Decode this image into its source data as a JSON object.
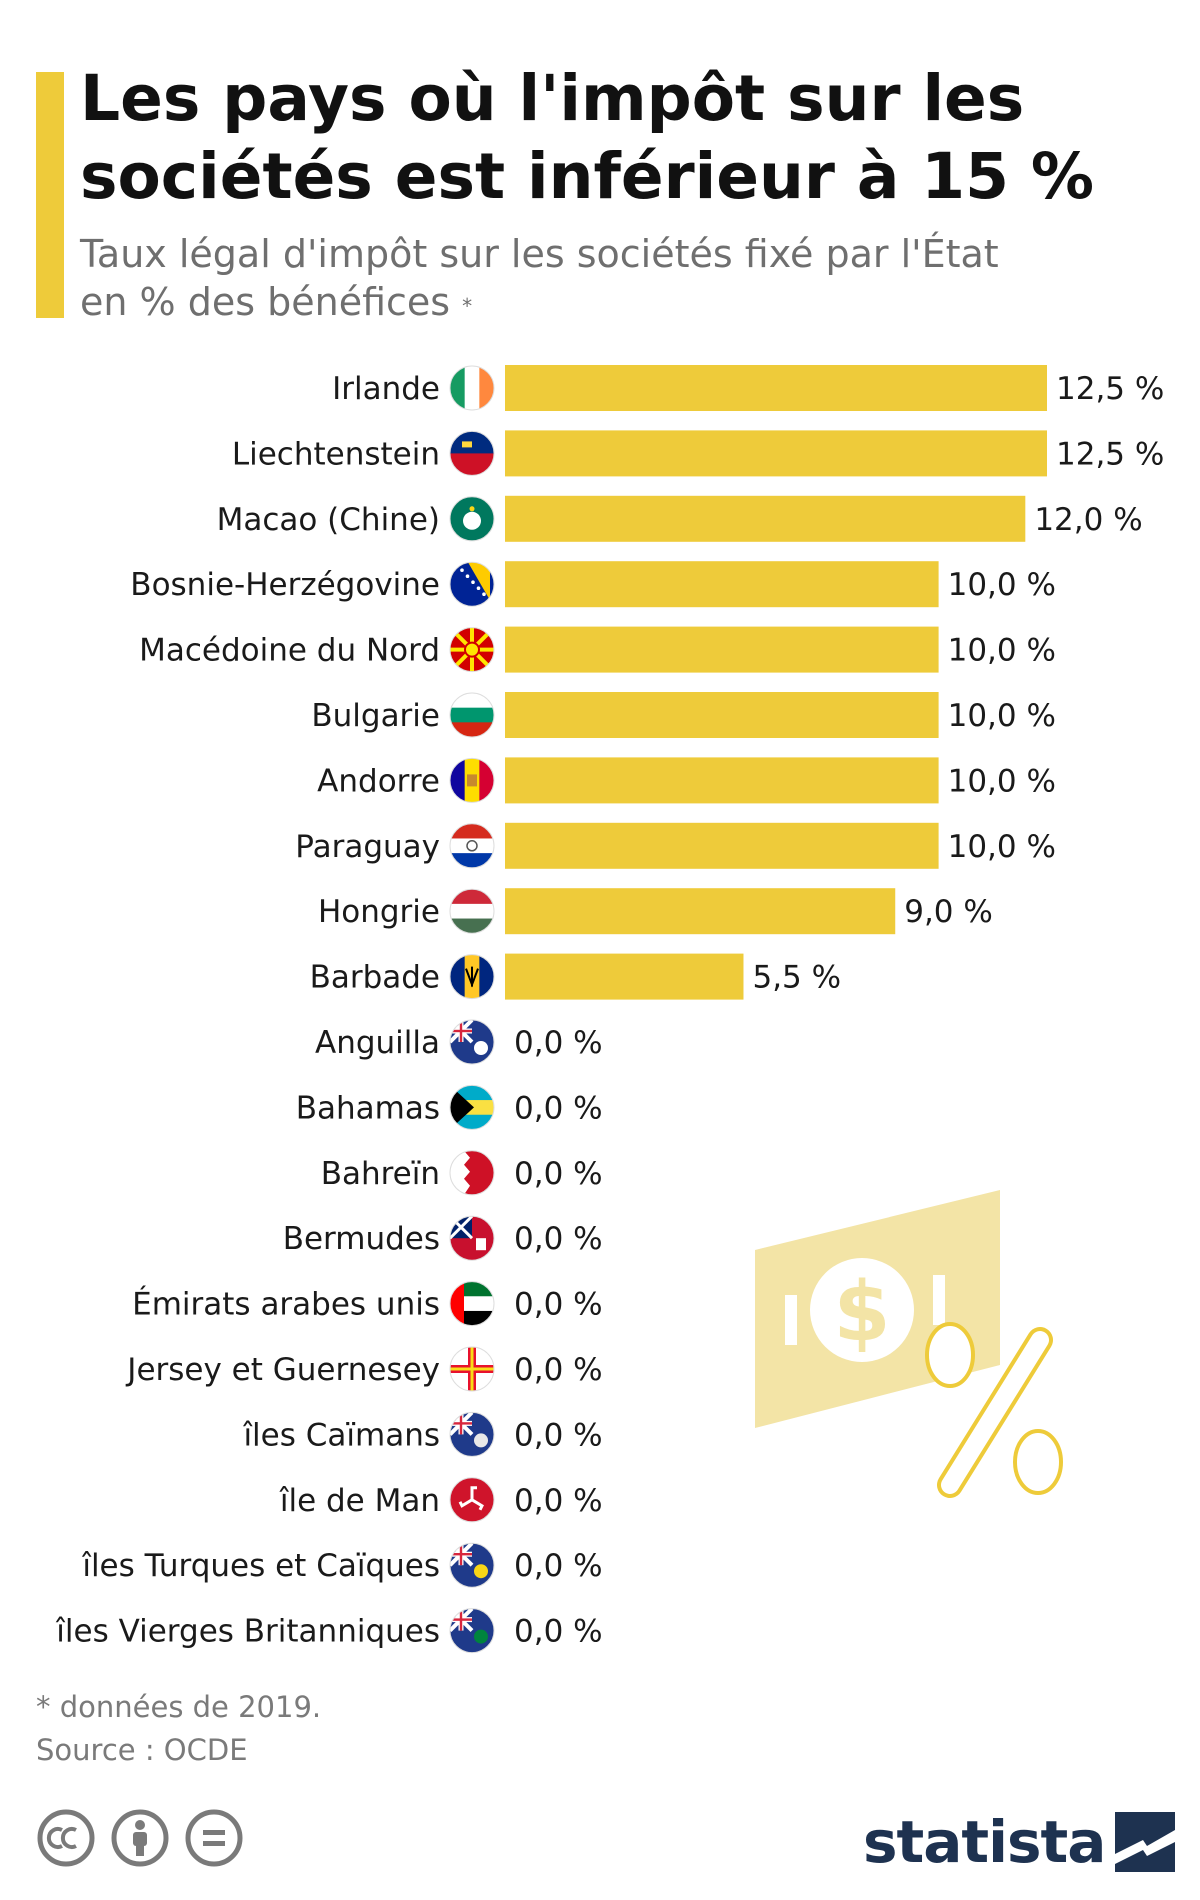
{
  "header": {
    "title_line1": "Les pays où l'impôt sur les",
    "title_line2": "sociétés est inférieur à 15 %",
    "subtitle_line1": "Taux légal d'impôt sur les sociétés fixé par l'État",
    "subtitle_line2": "en % des bénéfices",
    "subtitle_mark": "*"
  },
  "footer": {
    "footnote": "* données de 2019.",
    "source": "Source : OCDE",
    "brand": "statista",
    "license_icons": [
      "cc-icon",
      "by-icon",
      "nd-icon"
    ]
  },
  "colors": {
    "bar": "#eecb3a",
    "accent": "#eecb3a",
    "brand": "#1e3250",
    "illustration": "#f3e4a6"
  },
  "illustration": {
    "icon": "money-bill-percent-icon",
    "bill_symbol": "$",
    "percent_symbol": "%"
  },
  "chart_data": {
    "type": "bar",
    "orientation": "horizontal",
    "unit": "%",
    "xlim": [
      0,
      12.5
    ],
    "grid": false,
    "categories": [
      "Irlande",
      "Liechtenstein",
      "Macao (Chine)",
      "Bosnie-Herzégovine",
      "Macédoine du Nord",
      "Bulgarie",
      "Andorre",
      "Paraguay",
      "Hongrie",
      "Barbade",
      "Anguilla",
      "Bahamas",
      "Bahreïn",
      "Bermudes",
      "Émirats arabes unis",
      "Jersey et Guernesey",
      "îles Caïmans",
      "île de Man",
      "îles Turques et Caïques",
      "îles Vierges Britanniques"
    ],
    "values": [
      12.5,
      12.5,
      12.0,
      10.0,
      10.0,
      10.0,
      10.0,
      10.0,
      9.0,
      5.5,
      0.0,
      0.0,
      0.0,
      0.0,
      0.0,
      0.0,
      0.0,
      0.0,
      0.0,
      0.0
    ],
    "value_labels": [
      "12,5 %",
      "12,5 %",
      "12,0 %",
      "10,0 %",
      "10,0 %",
      "10,0 %",
      "10,0 %",
      "10,0 %",
      "9,0 %",
      "5,5 %",
      "0,0 %",
      "0,0 %",
      "0,0 %",
      "0,0 %",
      "0,0 %",
      "0,0 %",
      "0,0 %",
      "0,0 %",
      "0,0 %",
      "0,0 %"
    ],
    "flag_icons": [
      "flag-ireland-icon",
      "flag-liechtenstein-icon",
      "flag-macau-icon",
      "flag-bosnia-icon",
      "flag-north-macedonia-icon",
      "flag-bulgaria-icon",
      "flag-andorra-icon",
      "flag-paraguay-icon",
      "flag-hungary-icon",
      "flag-barbados-icon",
      "flag-anguilla-icon",
      "flag-bahamas-icon",
      "flag-bahrain-icon",
      "flag-bermuda-icon",
      "flag-uae-icon",
      "flag-guernsey-icon",
      "flag-cayman-islands-icon",
      "flag-isle-of-man-icon",
      "flag-turks-caicos-icon",
      "flag-bvi-icon"
    ]
  }
}
